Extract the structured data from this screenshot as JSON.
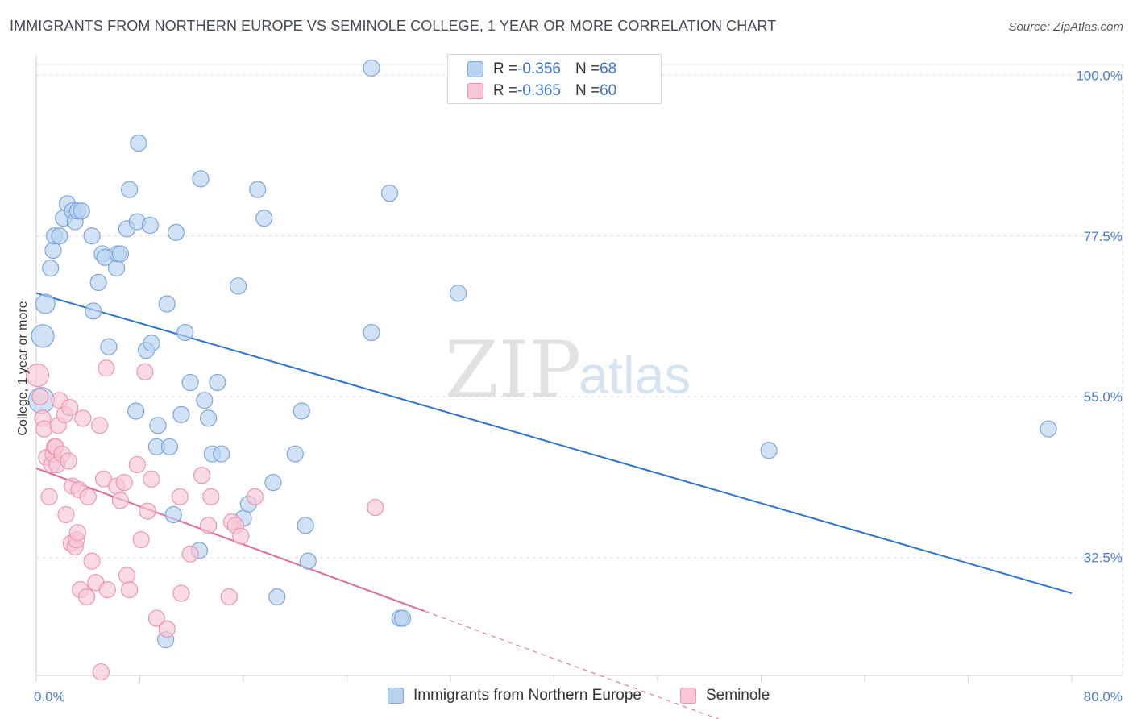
{
  "title": "IMMIGRANTS FROM NORTHERN EUROPE VS SEMINOLE COLLEGE, 1 YEAR OR MORE CORRELATION CHART",
  "source": "Source: ZipAtlas.com",
  "watermark": {
    "zip": "ZIP",
    "atlas": "atlas"
  },
  "legend": {
    "rows": [
      {
        "r_label": "R = ",
        "r_value": "-0.356",
        "n_label": "N = ",
        "n_value": "68"
      },
      {
        "r_label": "R = ",
        "r_value": "-0.365",
        "n_label": "N = ",
        "n_value": "60"
      }
    ]
  },
  "colors": {
    "blue_fill": "#b9d2f1",
    "blue_stroke": "#7aa6dc",
    "blue_line": "#2f74d0",
    "pink_fill": "#f8c6d4",
    "pink_stroke": "#ec95af",
    "pink_line": "#e06a93",
    "grid": "#dddddd",
    "tick_text": "#4a7bc7"
  },
  "chart_data": {
    "type": "scatter",
    "title": "IMMIGRANTS FROM NORTHERN EUROPE VS SEMINOLE COLLEGE, 1 YEAR OR MORE CORRELATION CHART",
    "xlabel": "",
    "ylabel": "College, 1 year or more",
    "xlim": [
      0,
      80
    ],
    "ylim": [
      16,
      101.5
    ],
    "x_tick_labels": [
      "0.0%",
      "80.0%"
    ],
    "y_ticks": [
      100,
      77.5,
      55,
      32.5
    ],
    "y_tick_labels": [
      "100.0%",
      "77.5%",
      "55.0%",
      "32.5%"
    ],
    "series": [
      {
        "name": "Immigrants from Northern Europe",
        "color": "blue",
        "trend": {
          "x0": 0,
          "y0": 69.5,
          "x1": 80,
          "y1": 27.5
        },
        "points": [
          [
            0.4,
            54.5,
            16
          ],
          [
            0.5,
            63.5,
            14
          ],
          [
            0.7,
            68,
            12
          ],
          [
            1.1,
            73,
            10
          ],
          [
            1.3,
            75.5,
            10
          ],
          [
            1.4,
            77.5,
            10
          ],
          [
            1.8,
            77.5,
            10
          ],
          [
            2.1,
            80,
            10
          ],
          [
            2.4,
            82,
            10
          ],
          [
            2.8,
            81,
            10
          ],
          [
            3,
            79.5,
            10
          ],
          [
            3.2,
            81,
            10
          ],
          [
            3.5,
            81,
            10
          ],
          [
            4.3,
            77.5,
            10
          ],
          [
            4.4,
            67,
            10
          ],
          [
            4.8,
            71,
            10
          ],
          [
            5.1,
            75,
            10
          ],
          [
            5.3,
            74.5,
            10
          ],
          [
            5.6,
            62,
            10
          ],
          [
            6.2,
            73,
            10
          ],
          [
            6.3,
            75,
            10
          ],
          [
            6.5,
            75,
            10
          ],
          [
            7,
            78.5,
            10
          ],
          [
            7.7,
            53,
            10
          ],
          [
            7.8,
            79.5,
            10
          ],
          [
            7.9,
            90.5,
            10
          ],
          [
            7.2,
            84,
            10
          ],
          [
            8.5,
            61.5,
            10
          ],
          [
            8.8,
            79,
            10
          ],
          [
            8.9,
            62.5,
            10
          ],
          [
            9.3,
            48,
            10
          ],
          [
            9.4,
            51,
            10
          ],
          [
            10,
            21,
            10
          ],
          [
            10.1,
            68,
            10
          ],
          [
            10.3,
            48,
            10
          ],
          [
            10.6,
            38.5,
            10
          ],
          [
            10.8,
            78,
            10
          ],
          [
            11.2,
            52.5,
            10
          ],
          [
            11.5,
            64,
            10
          ],
          [
            11.9,
            57,
            10
          ],
          [
            12.6,
            33.5,
            10
          ],
          [
            12.7,
            85.5,
            10
          ],
          [
            13,
            54.5,
            10
          ],
          [
            13.3,
            52,
            10
          ],
          [
            13.6,
            47,
            10
          ],
          [
            14,
            57,
            10
          ],
          [
            14.3,
            47,
            10
          ],
          [
            15.6,
            70.5,
            10
          ],
          [
            16,
            38,
            10
          ],
          [
            16.4,
            40,
            10
          ],
          [
            17.1,
            84,
            10
          ],
          [
            17.6,
            80,
            10
          ],
          [
            18.3,
            43,
            10
          ],
          [
            18.6,
            27,
            10
          ],
          [
            20,
            47,
            10
          ],
          [
            20.5,
            53,
            10
          ],
          [
            20.8,
            37,
            10
          ],
          [
            21,
            32,
            10
          ],
          [
            25.9,
            64,
            10
          ],
          [
            25.9,
            101,
            10
          ],
          [
            27.3,
            83.5,
            10
          ],
          [
            28.1,
            24,
            10
          ],
          [
            28.3,
            24,
            10
          ],
          [
            32.6,
            69.5,
            10
          ],
          [
            56.6,
            47.5,
            10
          ],
          [
            78.2,
            50.5,
            10
          ]
        ]
      },
      {
        "name": "Seminole",
        "color": "pink",
        "trend": {
          "x0": 0,
          "y0": 45,
          "x1": 30,
          "y1": 25,
          "dashed_to_x": 53,
          "dashed_to_y": 9.7
        },
        "points": [
          [
            0.1,
            58,
            14
          ],
          [
            0.3,
            55,
            10
          ],
          [
            0.5,
            52,
            10
          ],
          [
            0.6,
            50.5,
            10
          ],
          [
            0.8,
            46.5,
            10
          ],
          [
            1,
            41,
            10
          ],
          [
            1.2,
            45.5,
            10
          ],
          [
            1.3,
            47,
            10
          ],
          [
            1.4,
            48,
            10
          ],
          [
            1.5,
            48,
            10
          ],
          [
            1.6,
            45.5,
            10
          ],
          [
            1.7,
            51,
            10
          ],
          [
            1.8,
            54.5,
            10
          ],
          [
            2,
            47,
            10
          ],
          [
            2.2,
            52.5,
            10
          ],
          [
            2.3,
            38.5,
            10
          ],
          [
            2.5,
            46,
            10
          ],
          [
            2.6,
            53.5,
            10
          ],
          [
            2.7,
            34.5,
            10
          ],
          [
            2.8,
            42.5,
            10
          ],
          [
            3,
            34,
            10
          ],
          [
            3.1,
            35,
            10
          ],
          [
            3.2,
            36,
            10
          ],
          [
            3.3,
            42,
            10
          ],
          [
            3.4,
            28,
            10
          ],
          [
            3.6,
            52,
            10
          ],
          [
            3.9,
            27,
            10
          ],
          [
            4,
            41,
            10
          ],
          [
            4.3,
            32,
            10
          ],
          [
            4.6,
            29,
            10
          ],
          [
            4.9,
            51,
            10
          ],
          [
            5,
            16.5,
            10
          ],
          [
            5.2,
            43.5,
            10
          ],
          [
            5.4,
            59,
            10
          ],
          [
            5.5,
            28,
            10
          ],
          [
            6.2,
            42.5,
            10
          ],
          [
            6.5,
            40.5,
            10
          ],
          [
            6.8,
            43,
            10
          ],
          [
            7,
            30,
            10
          ],
          [
            7.2,
            28,
            10
          ],
          [
            7.8,
            45.5,
            10
          ],
          [
            8.1,
            35,
            10
          ],
          [
            8.4,
            58.5,
            10
          ],
          [
            8.6,
            39,
            10
          ],
          [
            8.9,
            43.5,
            10
          ],
          [
            9.3,
            24,
            10
          ],
          [
            10.1,
            22.5,
            10
          ],
          [
            11.1,
            41,
            10
          ],
          [
            11.2,
            27.5,
            10
          ],
          [
            11.9,
            33,
            10
          ],
          [
            12.8,
            44,
            10
          ],
          [
            13.3,
            37,
            10
          ],
          [
            13.5,
            41,
            10
          ],
          [
            14.9,
            27,
            10
          ],
          [
            15.1,
            37.5,
            10
          ],
          [
            15.4,
            37,
            10
          ],
          [
            15.8,
            35.5,
            10
          ],
          [
            16.9,
            41,
            10
          ],
          [
            26.2,
            39.5,
            10
          ]
        ]
      }
    ]
  },
  "bottom_legend": [
    {
      "label": "Immigrants from Northern Europe",
      "color": "blue"
    },
    {
      "label": "Seminole",
      "color": "pink"
    }
  ]
}
